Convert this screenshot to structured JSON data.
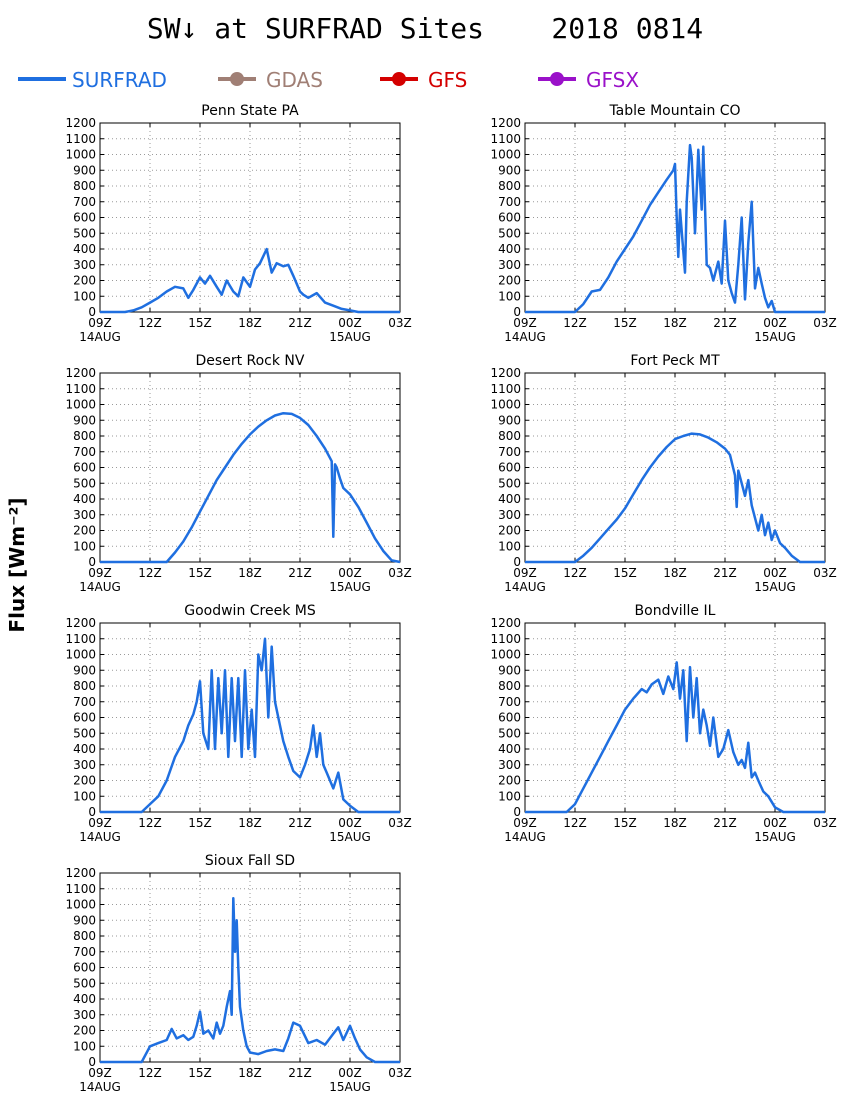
{
  "page": {
    "title": "SW↓ at SURFRAD Sites    2018 0814",
    "ylabel": "Flux [Wm⁻²]"
  },
  "legend": [
    {
      "label": "SURFRAD",
      "color": "#1f6fe0",
      "marker": false
    },
    {
      "label": "GDAS",
      "color": "#a07f75",
      "marker": true
    },
    {
      "label": "GFS",
      "color": "#d40000",
      "marker": true
    },
    {
      "label": "GFSX",
      "color": "#9a11c9",
      "marker": true
    }
  ],
  "axes": {
    "x_ticks": [
      "09Z",
      "12Z",
      "15Z",
      "18Z",
      "21Z",
      "00Z",
      "03Z"
    ],
    "x_date_labels": [
      {
        "at": "09Z",
        "text": "14AUG"
      },
      {
        "at": "00Z",
        "text": "15AUG"
      }
    ],
    "y_ticks": [
      0,
      100,
      200,
      300,
      400,
      500,
      600,
      700,
      800,
      900,
      1000,
      1100,
      1200
    ]
  },
  "chart_data": [
    {
      "type": "line",
      "title": "Penn State PA",
      "xlim": [
        9,
        27
      ],
      "ylim": [
        0,
        1200
      ],
      "grid": true,
      "x_unit": "hours since 14AUG 00Z",
      "series": [
        {
          "name": "SURFRAD",
          "color": "#1f6fe0",
          "x": [
            9,
            10.5,
            11,
            11.5,
            12,
            12.5,
            13,
            13.5,
            14,
            14.3,
            14.6,
            15,
            15.3,
            15.6,
            16,
            16.3,
            16.6,
            17,
            17.3,
            17.6,
            18,
            18.3,
            18.6,
            19,
            19.3,
            19.6,
            20,
            20.3,
            20.6,
            21,
            21.2,
            21.5,
            22,
            22.5,
            23,
            23.5,
            24,
            24.5,
            25,
            27
          ],
          "values": [
            0,
            0,
            10,
            30,
            60,
            90,
            130,
            160,
            150,
            90,
            140,
            220,
            180,
            230,
            160,
            110,
            200,
            130,
            100,
            220,
            160,
            270,
            310,
            400,
            250,
            310,
            290,
            300,
            230,
            130,
            110,
            90,
            120,
            60,
            40,
            20,
            10,
            0,
            0,
            0
          ]
        }
      ]
    },
    {
      "type": "line",
      "title": "Table Mountain CO",
      "xlim": [
        9,
        27
      ],
      "ylim": [
        0,
        1200
      ],
      "grid": true,
      "x_unit": "hours since 14AUG 00Z",
      "series": [
        {
          "name": "SURFRAD",
          "color": "#1f6fe0",
          "x": [
            9,
            12,
            12.5,
            13,
            13.5,
            14,
            14.5,
            15,
            15.5,
            16,
            16.5,
            17,
            17.5,
            17.9,
            18,
            18.1,
            18.2,
            18.3,
            18.6,
            18.7,
            18.9,
            19,
            19.2,
            19.4,
            19.6,
            19.7,
            19.9,
            20.1,
            20.3,
            20.6,
            20.8,
            21,
            21.2,
            21.4,
            21.6,
            21.8,
            22,
            22.2,
            22.4,
            22.6,
            22.8,
            23,
            23.2,
            23.4,
            23.6,
            23.8,
            24,
            24.3,
            24.6,
            25,
            27
          ],
          "values": [
            0,
            0,
            50,
            130,
            140,
            220,
            320,
            400,
            480,
            580,
            680,
            760,
            840,
            900,
            940,
            600,
            350,
            650,
            250,
            700,
            1060,
            980,
            500,
            1030,
            650,
            1050,
            300,
            280,
            200,
            320,
            180,
            580,
            200,
            120,
            60,
            300,
            600,
            80,
            440,
            700,
            150,
            280,
            180,
            90,
            30,
            70,
            0,
            0,
            0,
            0,
            0
          ]
        }
      ]
    },
    {
      "type": "line",
      "title": "Desert Rock NV",
      "xlim": [
        9,
        27
      ],
      "ylim": [
        0,
        1200
      ],
      "grid": true,
      "x_unit": "hours since 14AUG 00Z",
      "series": [
        {
          "name": "SURFRAD",
          "color": "#1f6fe0",
          "x": [
            9,
            13,
            13.5,
            14,
            14.5,
            15,
            15.5,
            16,
            16.5,
            17,
            17.5,
            18,
            18.5,
            19,
            19.5,
            20,
            20.5,
            21,
            21.5,
            22,
            22.5,
            22.9,
            23.0,
            23.1,
            23.2,
            23.4,
            23.6,
            24,
            24.5,
            25,
            25.5,
            26,
            26.5,
            27
          ],
          "values": [
            0,
            0,
            60,
            130,
            220,
            320,
            420,
            520,
            600,
            680,
            750,
            810,
            860,
            900,
            930,
            945,
            940,
            915,
            870,
            800,
            720,
            640,
            160,
            620,
            600,
            530,
            470,
            430,
            350,
            250,
            150,
            70,
            10,
            0
          ]
        }
      ]
    },
    {
      "type": "line",
      "title": "Fort Peck MT",
      "xlim": [
        9,
        27
      ],
      "ylim": [
        0,
        1200
      ],
      "grid": true,
      "x_unit": "hours since 14AUG 00Z",
      "series": [
        {
          "name": "SURFRAD",
          "color": "#1f6fe0",
          "x": [
            9,
            12,
            12.5,
            13,
            13.5,
            14,
            14.5,
            15,
            15.5,
            16,
            16.5,
            17,
            17.5,
            18,
            18.5,
            19,
            19.5,
            20,
            20.5,
            21,
            21.3,
            21.6,
            21.7,
            21.8,
            22,
            22.2,
            22.4,
            22.6,
            22.8,
            23,
            23.2,
            23.4,
            23.6,
            23.8,
            24,
            24.3,
            24.6,
            25,
            25.5,
            27
          ],
          "values": [
            0,
            0,
            40,
            90,
            150,
            210,
            270,
            340,
            430,
            520,
            600,
            670,
            730,
            780,
            800,
            815,
            810,
            790,
            760,
            720,
            680,
            550,
            350,
            580,
            500,
            420,
            520,
            360,
            280,
            200,
            300,
            170,
            250,
            140,
            200,
            120,
            90,
            40,
            0,
            0
          ]
        }
      ]
    },
    {
      "type": "line",
      "title": "Goodwin Creek MS",
      "xlim": [
        9,
        27
      ],
      "ylim": [
        0,
        1200
      ],
      "grid": true,
      "x_unit": "hours since 14AUG 00Z",
      "series": [
        {
          "name": "SURFRAD",
          "color": "#1f6fe0",
          "x": [
            9,
            11.5,
            12,
            12.5,
            13,
            13.5,
            14,
            14.3,
            14.6,
            14.8,
            15,
            15.2,
            15.5,
            15.7,
            15.9,
            16.1,
            16.3,
            16.5,
            16.7,
            16.9,
            17.1,
            17.3,
            17.5,
            17.7,
            17.9,
            18.1,
            18.3,
            18.5,
            18.7,
            18.9,
            19.1,
            19.3,
            19.5,
            19.7,
            20,
            20.3,
            20.6,
            21,
            21.3,
            21.6,
            21.8,
            22,
            22.2,
            22.4,
            22.6,
            22.8,
            23,
            23.3,
            23.6,
            24,
            24.5,
            27
          ],
          "values": [
            0,
            0,
            50,
            100,
            200,
            350,
            450,
            550,
            620,
            700,
            830,
            500,
            400,
            900,
            400,
            850,
            500,
            900,
            350,
            850,
            450,
            850,
            350,
            900,
            400,
            650,
            350,
            1000,
            900,
            1100,
            600,
            1050,
            700,
            600,
            450,
            350,
            260,
            220,
            300,
            400,
            550,
            350,
            500,
            300,
            250,
            200,
            150,
            250,
            80,
            40,
            0,
            0
          ]
        }
      ]
    },
    {
      "type": "line",
      "title": "Bondville IL",
      "xlim": [
        9,
        27
      ],
      "ylim": [
        0,
        1200
      ],
      "grid": true,
      "x_unit": "hours since 14AUG 00Z",
      "series": [
        {
          "name": "SURFRAD",
          "color": "#1f6fe0",
          "x": [
            9,
            11.5,
            12,
            12.5,
            13,
            13.5,
            14,
            14.5,
            15,
            15.5,
            16,
            16.3,
            16.6,
            17,
            17.3,
            17.6,
            17.9,
            18.1,
            18.3,
            18.5,
            18.7,
            18.9,
            19.1,
            19.3,
            19.5,
            19.7,
            19.9,
            20.1,
            20.3,
            20.6,
            20.9,
            21.2,
            21.5,
            21.8,
            22,
            22.2,
            22.4,
            22.6,
            22.8,
            23,
            23.3,
            23.6,
            24,
            24.5,
            27
          ],
          "values": [
            0,
            0,
            50,
            150,
            250,
            350,
            450,
            550,
            650,
            720,
            780,
            760,
            810,
            840,
            750,
            860,
            780,
            950,
            720,
            900,
            450,
            920,
            600,
            850,
            500,
            650,
            550,
            420,
            600,
            350,
            400,
            520,
            380,
            300,
            330,
            280,
            440,
            220,
            250,
            200,
            130,
            100,
            30,
            0,
            0
          ]
        }
      ]
    },
    {
      "type": "line",
      "title": "Sioux Fall SD",
      "xlim": [
        9,
        27
      ],
      "ylim": [
        0,
        1200
      ],
      "grid": true,
      "x_unit": "hours since 14AUG 00Z",
      "series": [
        {
          "name": "SURFRAD",
          "color": "#1f6fe0",
          "x": [
            9,
            11.5,
            12,
            12.5,
            13,
            13.3,
            13.6,
            14,
            14.3,
            14.6,
            14.8,
            15,
            15.2,
            15.5,
            15.8,
            16,
            16.2,
            16.4,
            16.6,
            16.8,
            16.9,
            17.0,
            17.1,
            17.2,
            17.3,
            17.4,
            17.6,
            17.8,
            18,
            18.5,
            19,
            19.5,
            20,
            20.3,
            20.6,
            21,
            21.5,
            22,
            22.5,
            23,
            23.3,
            23.6,
            24,
            24.3,
            24.6,
            25,
            25.5,
            27
          ],
          "values": [
            0,
            0,
            100,
            120,
            140,
            210,
            150,
            170,
            140,
            160,
            230,
            320,
            180,
            200,
            150,
            250,
            180,
            230,
            350,
            450,
            300,
            1040,
            700,
            900,
            600,
            350,
            200,
            100,
            60,
            50,
            70,
            80,
            70,
            150,
            250,
            230,
            120,
            140,
            110,
            180,
            220,
            140,
            230,
            150,
            80,
            30,
            0,
            0
          ]
        }
      ]
    }
  ]
}
